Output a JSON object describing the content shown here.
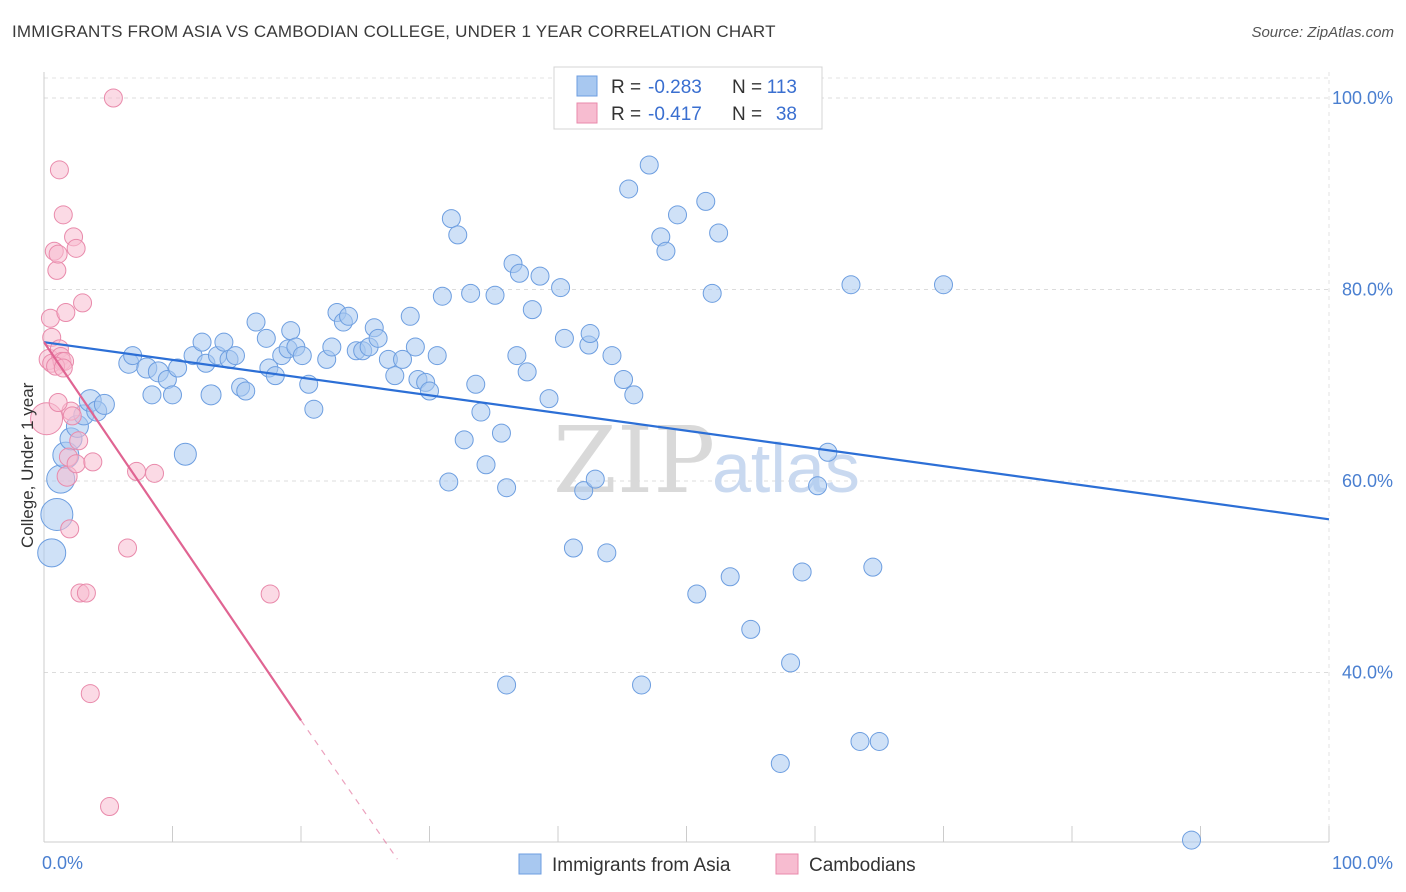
{
  "title": "IMMIGRANTS FROM ASIA VS CAMBODIAN COLLEGE, UNDER 1 YEAR CORRELATION CHART",
  "source": "Source: ZipAtlas.com",
  "watermark": {
    "zip": "ZIP",
    "atlas": "atlas"
  },
  "chart_data": {
    "type": "scatter",
    "title": "IMMIGRANTS FROM ASIA VS CAMBODIAN COLLEGE, UNDER 1 YEAR CORRELATION CHART",
    "xlabel": "",
    "ylabel": "College, Under 1 year",
    "xlim": [
      0,
      100
    ],
    "ylim": [
      20,
      102
    ],
    "grid": true,
    "legend_placement": "top-center",
    "x_ticks": [
      {
        "value": 0,
        "label": "0.0%"
      },
      {
        "value": 100,
        "label": "100.0%"
      }
    ],
    "y_ticks": [
      {
        "value": 40,
        "label": "40.0%"
      },
      {
        "value": 60,
        "label": "60.0%"
      },
      {
        "value": 80,
        "label": "80.0%"
      },
      {
        "value": 100,
        "label": "100.0%"
      }
    ],
    "legend": [
      {
        "r_label": "R =",
        "r_value": "-0.283",
        "n_label": "N =",
        "n_value": "113",
        "color": "#a8c8f0",
        "stroke": "#6d9ee0"
      },
      {
        "r_label": "R =",
        "r_value": "-0.417",
        "n_label": "N =",
        "n_value": "38",
        "color": "#f7bcd0",
        "stroke": "#e98aab"
      }
    ],
    "series": [
      {
        "name": "Immigrants from Asia",
        "color": "#a8c8f0",
        "stroke": "#6d9ee0",
        "trend": {
          "x0": 0,
          "y0": 74.5,
          "x1": 100,
          "y1": 56.0,
          "color": "#2c6fd6"
        },
        "points": [
          [
            0.6,
            52.5,
            14
          ],
          [
            1.0,
            56.5,
            16
          ],
          [
            1.3,
            60.2,
            14
          ],
          [
            1.7,
            62.7,
            13
          ],
          [
            2.1,
            64.4,
            11
          ],
          [
            2.6,
            65.7,
            11
          ],
          [
            3.1,
            66.9,
            10
          ],
          [
            3.6,
            68.4,
            11
          ],
          [
            4.1,
            67.3,
            10
          ],
          [
            4.7,
            68.0,
            10
          ],
          [
            6.6,
            72.3,
            10
          ],
          [
            6.9,
            73.1,
            9
          ],
          [
            8.0,
            71.8,
            10
          ],
          [
            8.4,
            69.0,
            9
          ],
          [
            8.9,
            71.4,
            10
          ],
          [
            9.6,
            70.6,
            9
          ],
          [
            10.0,
            69.0,
            9
          ],
          [
            10.4,
            71.8,
            9
          ],
          [
            11.0,
            62.8,
            11
          ],
          [
            11.6,
            73.1,
            9
          ],
          [
            12.3,
            74.5,
            9
          ],
          [
            12.6,
            72.3,
            9
          ],
          [
            13.0,
            69.0,
            10
          ],
          [
            13.5,
            73.1,
            9
          ],
          [
            14.0,
            74.5,
            9
          ],
          [
            14.4,
            72.7,
            9
          ],
          [
            14.9,
            73.1,
            9
          ],
          [
            15.3,
            69.8,
            9
          ],
          [
            15.7,
            69.4,
            9
          ],
          [
            16.5,
            76.6,
            9
          ],
          [
            17.3,
            74.9,
            9
          ],
          [
            17.5,
            71.8,
            9
          ],
          [
            18.0,
            71.0,
            9
          ],
          [
            18.5,
            73.1,
            9
          ],
          [
            19.0,
            73.8,
            9
          ],
          [
            19.2,
            75.7,
            9
          ],
          [
            19.6,
            74.0,
            9
          ],
          [
            20.1,
            73.1,
            9
          ],
          [
            20.6,
            70.1,
            9
          ],
          [
            21.0,
            67.5,
            9
          ],
          [
            22.0,
            72.7,
            9
          ],
          [
            22.4,
            74.0,
            9
          ],
          [
            22.8,
            77.6,
            9
          ],
          [
            23.3,
            76.6,
            9
          ],
          [
            23.7,
            77.2,
            9
          ],
          [
            24.3,
            73.6,
            9
          ],
          [
            24.8,
            73.6,
            9
          ],
          [
            25.3,
            74.0,
            9
          ],
          [
            25.7,
            76.0,
            9
          ],
          [
            26.0,
            74.9,
            9
          ],
          [
            26.8,
            72.7,
            9
          ],
          [
            27.3,
            71.0,
            9
          ],
          [
            27.9,
            72.7,
            9
          ],
          [
            28.5,
            77.2,
            9
          ],
          [
            28.9,
            74.0,
            9
          ],
          [
            29.1,
            70.6,
            9
          ],
          [
            29.7,
            70.3,
            9
          ],
          [
            30.0,
            69.4,
            9
          ],
          [
            30.6,
            73.1,
            9
          ],
          [
            31.0,
            79.3,
            9
          ],
          [
            31.5,
            59.9,
            9
          ],
          [
            31.7,
            87.4,
            9
          ],
          [
            32.2,
            85.7,
            9
          ],
          [
            32.7,
            64.3,
            9
          ],
          [
            33.2,
            79.6,
            9
          ],
          [
            33.6,
            70.1,
            9
          ],
          [
            34.0,
            67.2,
            9
          ],
          [
            34.4,
            61.7,
            9
          ],
          [
            35.1,
            79.4,
            9
          ],
          [
            35.6,
            65.0,
            9
          ],
          [
            36.0,
            59.3,
            9
          ],
          [
            36.5,
            82.7,
            9
          ],
          [
            36.8,
            73.1,
            9
          ],
          [
            37.0,
            81.7,
            9
          ],
          [
            37.6,
            71.4,
            9
          ],
          [
            38.0,
            77.9,
            9
          ],
          [
            38.6,
            81.4,
            9
          ],
          [
            39.3,
            68.6,
            9
          ],
          [
            40.2,
            80.2,
            9
          ],
          [
            40.5,
            74.9,
            9
          ],
          [
            41.2,
            53.0,
            9
          ],
          [
            42.0,
            59.0,
            9
          ],
          [
            42.4,
            74.2,
            9
          ],
          [
            42.5,
            75.4,
            9
          ],
          [
            42.9,
            60.2,
            9
          ],
          [
            43.8,
            52.5,
            9
          ],
          [
            44.2,
            73.1,
            9
          ],
          [
            45.1,
            70.6,
            9
          ],
          [
            45.5,
            90.5,
            9
          ],
          [
            45.9,
            69.0,
            9
          ],
          [
            47.1,
            93.0,
            9
          ],
          [
            48.0,
            85.5,
            9
          ],
          [
            48.4,
            84.0,
            9
          ],
          [
            49.3,
            87.8,
            9
          ],
          [
            50.8,
            48.2,
            9
          ],
          [
            51.5,
            89.2,
            9
          ],
          [
            52.0,
            79.6,
            9
          ],
          [
            52.5,
            85.9,
            9
          ],
          [
            53.4,
            50.0,
            9
          ],
          [
            55.0,
            44.5,
            9
          ],
          [
            57.3,
            30.5,
            9
          ],
          [
            58.1,
            41.0,
            9
          ],
          [
            59.0,
            50.5,
            9
          ],
          [
            60.2,
            59.5,
            9
          ],
          [
            61.0,
            63.0,
            9
          ],
          [
            62.8,
            80.5,
            9
          ],
          [
            63.5,
            32.8,
            9
          ],
          [
            64.5,
            51.0,
            9
          ],
          [
            65.0,
            32.8,
            9
          ],
          [
            70.0,
            80.5,
            9
          ],
          [
            89.3,
            22.5,
            9
          ],
          [
            36.0,
            38.7,
            9
          ],
          [
            46.5,
            38.7,
            9
          ]
        ]
      },
      {
        "name": "Cambodians",
        "color": "#f7bcd0",
        "stroke": "#e98aab",
        "trend": {
          "x0": 0,
          "y0": 74.5,
          "x1": 20.0,
          "y1": 35.0,
          "dash_x1": 27.5,
          "dash_y1": 20.5,
          "color": "#e06492"
        },
        "points": [
          [
            0.2,
            66.5,
            16
          ],
          [
            0.4,
            72.7,
            10
          ],
          [
            0.5,
            77.0,
            9
          ],
          [
            0.6,
            75.0,
            9
          ],
          [
            0.6,
            72.3,
            9
          ],
          [
            0.8,
            84.0,
            9
          ],
          [
            1.0,
            82.0,
            9
          ],
          [
            1.1,
            83.7,
            9
          ],
          [
            1.2,
            92.5,
            9
          ],
          [
            1.2,
            73.8,
            9
          ],
          [
            1.3,
            73.0,
            9
          ],
          [
            1.4,
            72.5,
            9
          ],
          [
            1.5,
            87.8,
            9
          ],
          [
            1.7,
            77.6,
            9
          ],
          [
            1.8,
            60.5,
            10
          ],
          [
            1.9,
            62.5,
            9
          ],
          [
            2.0,
            55.0,
            9
          ],
          [
            2.1,
            67.3,
            9
          ],
          [
            2.3,
            85.5,
            9
          ],
          [
            2.5,
            84.3,
            9
          ],
          [
            2.5,
            61.8,
            9
          ],
          [
            2.8,
            48.3,
            9
          ],
          [
            3.0,
            78.6,
            9
          ],
          [
            3.3,
            48.3,
            9
          ],
          [
            3.6,
            37.8,
            9
          ],
          [
            3.8,
            62.0,
            9
          ],
          [
            5.1,
            26.0,
            9
          ],
          [
            5.4,
            100.0,
            9
          ],
          [
            6.5,
            53.0,
            9
          ],
          [
            7.2,
            61.0,
            9
          ],
          [
            8.6,
            60.8,
            9
          ],
          [
            17.6,
            48.2,
            9
          ],
          [
            1.6,
            72.5,
            9
          ],
          [
            2.2,
            66.8,
            9
          ],
          [
            1.1,
            68.2,
            9
          ],
          [
            0.9,
            72.0,
            9
          ],
          [
            2.7,
            64.2,
            9
          ],
          [
            1.5,
            71.8,
            9
          ]
        ]
      }
    ]
  },
  "bottom_legend": [
    {
      "label": "Immigrants from Asia",
      "color": "#a8c8f0",
      "stroke": "#6d9ee0"
    },
    {
      "label": "Cambodians",
      "color": "#f7bcd0",
      "stroke": "#e98aab"
    }
  ]
}
